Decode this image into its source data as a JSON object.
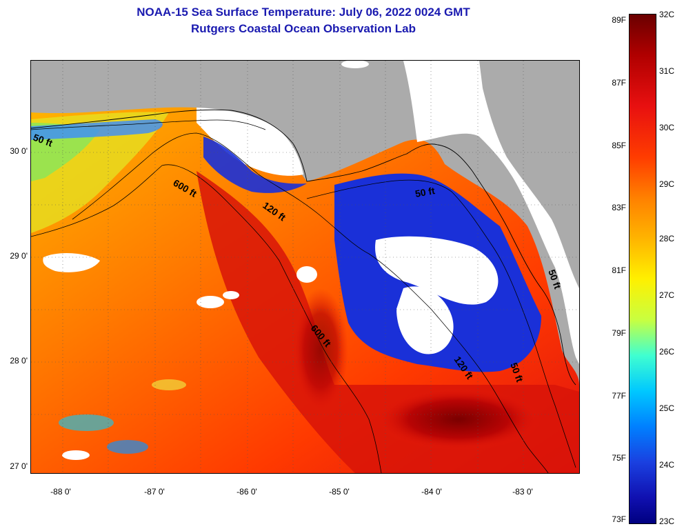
{
  "title": {
    "line1": "NOAA-15 Sea Surface Temperature:  July 06, 2022 0024 GMT",
    "line2": "Rutgers Coastal Ocean Observation Lab"
  },
  "latitude_labels": [
    "30 0'",
    "29 0'",
    "28 0'",
    "27 0'"
  ],
  "longitude_labels": [
    "-88 0'",
    "-87 0'",
    "-86 0'",
    "-85 0'",
    "-84 0'",
    "-83 0'"
  ],
  "isobath_labels": [
    "50 ft",
    "600 ft",
    "120 ft",
    "50 ft",
    "600 ft",
    "120 ft",
    "50 ft",
    "50 ft"
  ],
  "colorbar": {
    "fahrenheit": [
      "89F",
      "87F",
      "85F",
      "83F",
      "81F",
      "79F",
      "77F",
      "75F",
      "73F"
    ],
    "celsius": [
      "32C",
      "31C",
      "30C",
      "29C",
      "28C",
      "27C",
      "26C",
      "25C",
      "24C",
      "23C"
    ]
  },
  "colors": {
    "title": "#1a1ab0",
    "land": "#ababab",
    "cloud": "#ffffff",
    "warmest": "#6a0000",
    "coldest": "#000080"
  }
}
